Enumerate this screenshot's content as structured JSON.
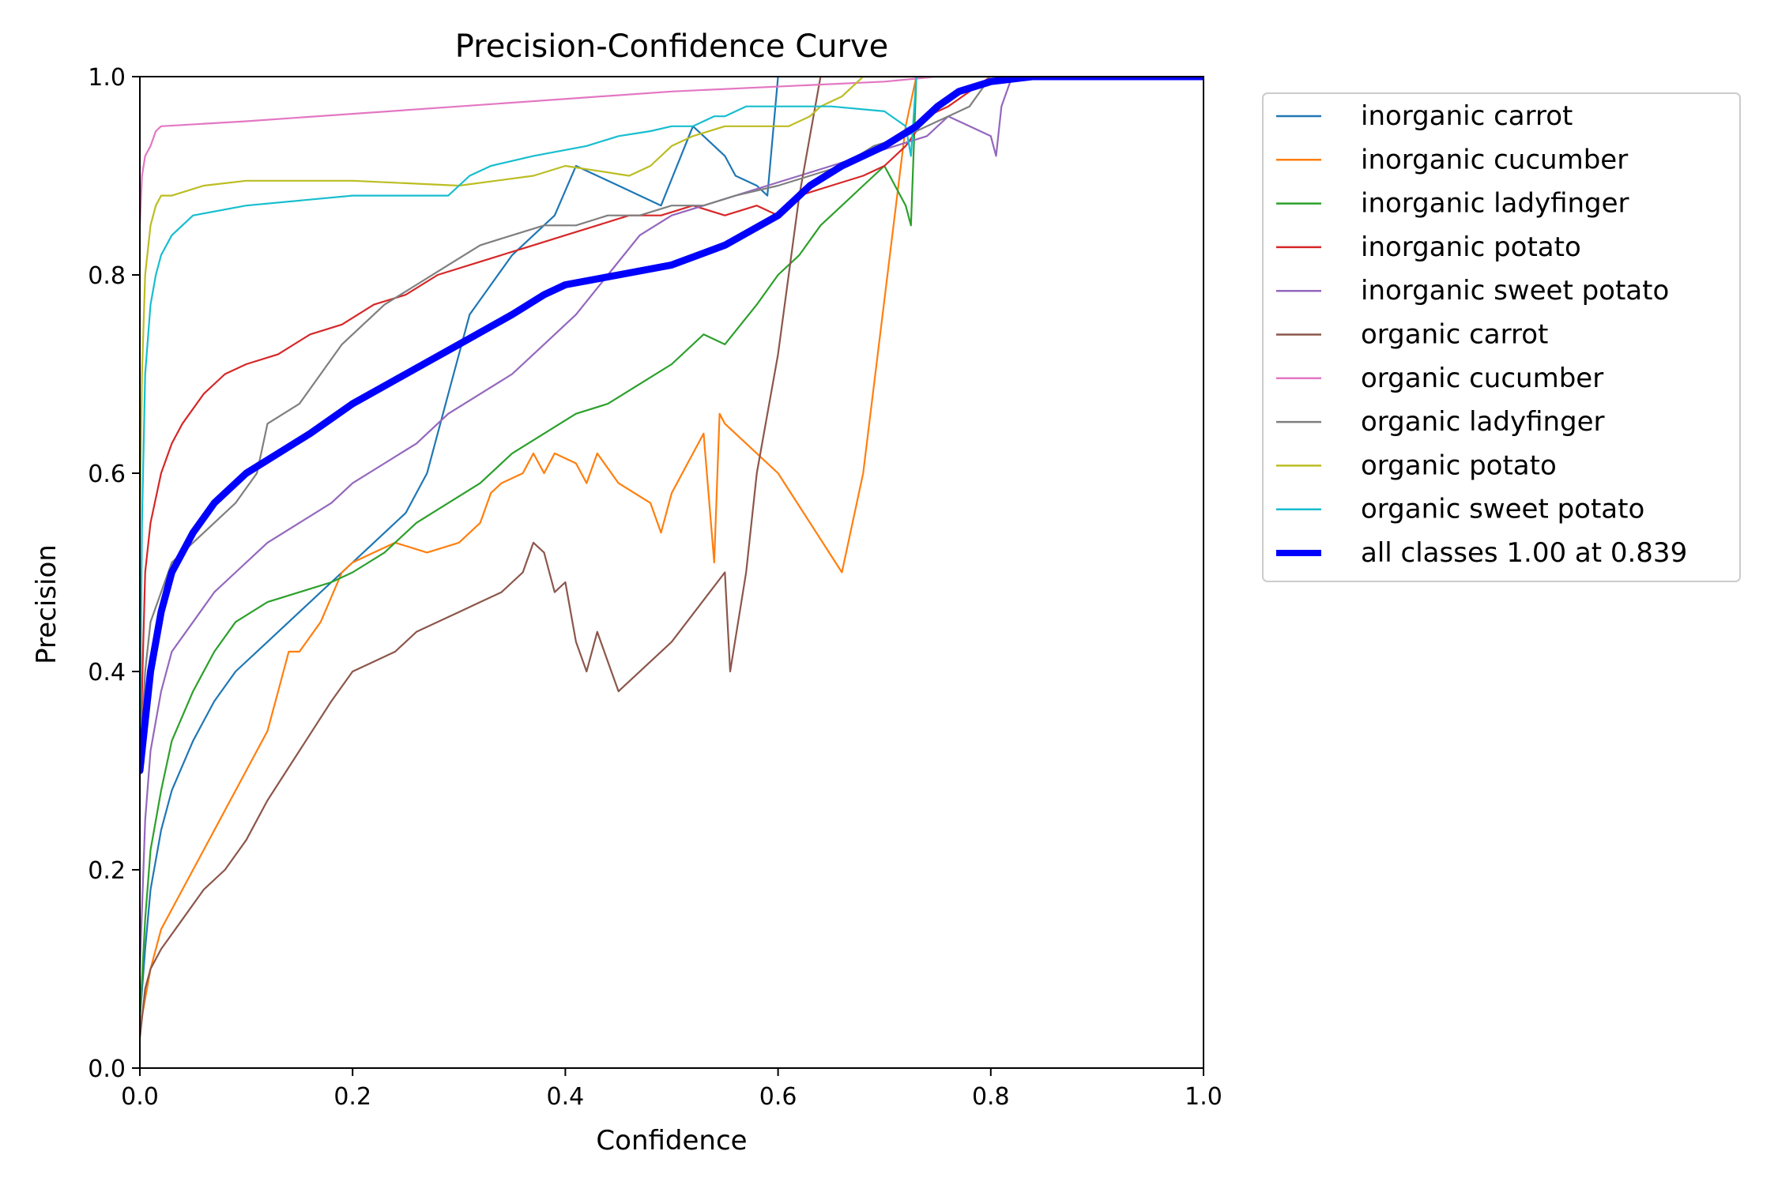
{
  "chart_data": {
    "type": "line",
    "title": "Precision-Confidence Curve",
    "xlabel": "Confidence",
    "ylabel": "Precision",
    "xlim": [
      0,
      1
    ],
    "ylim": [
      0,
      1
    ],
    "xticks": [
      "0.0",
      "0.2",
      "0.4",
      "0.6",
      "0.8",
      "1.0"
    ],
    "yticks": [
      "0.0",
      "0.2",
      "0.4",
      "0.6",
      "0.8",
      "1.0"
    ],
    "grid": false,
    "legend_position": "outside-right",
    "series": [
      {
        "name": "inorganic carrot",
        "color": "#1f77b4",
        "x": [
          0.0,
          0.005,
          0.01,
          0.02,
          0.03,
          0.05,
          0.07,
          0.09,
          0.12,
          0.15,
          0.18,
          0.2,
          0.22,
          0.25,
          0.27,
          0.29,
          0.31,
          0.33,
          0.35,
          0.37,
          0.39,
          0.41,
          0.43,
          0.45,
          0.47,
          0.49,
          0.52,
          0.54,
          0.55,
          0.56,
          0.58,
          0.59,
          0.6,
          0.61,
          0.63,
          0.7,
          0.8,
          1.0
        ],
        "y": [
          0.05,
          0.12,
          0.18,
          0.24,
          0.28,
          0.33,
          0.37,
          0.4,
          0.43,
          0.46,
          0.49,
          0.51,
          0.53,
          0.56,
          0.6,
          0.68,
          0.76,
          0.79,
          0.82,
          0.84,
          0.86,
          0.91,
          0.9,
          0.89,
          0.88,
          0.87,
          0.95,
          0.93,
          0.92,
          0.9,
          0.89,
          0.88,
          1.0,
          1.0,
          1.0,
          1.0,
          1.0,
          1.0
        ]
      },
      {
        "name": "inorganic cucumber",
        "color": "#ff7f0e",
        "x": [
          0.0,
          0.01,
          0.02,
          0.04,
          0.06,
          0.08,
          0.1,
          0.12,
          0.13,
          0.14,
          0.15,
          0.17,
          0.19,
          0.2,
          0.22,
          0.24,
          0.27,
          0.3,
          0.32,
          0.33,
          0.34,
          0.36,
          0.37,
          0.38,
          0.39,
          0.41,
          0.42,
          0.43,
          0.45,
          0.48,
          0.49,
          0.5,
          0.52,
          0.53,
          0.54,
          0.545,
          0.55,
          0.6,
          0.66,
          0.68,
          0.72,
          0.73,
          0.75,
          0.8,
          1.0
        ],
        "y": [
          0.04,
          0.1,
          0.14,
          0.18,
          0.22,
          0.26,
          0.3,
          0.34,
          0.38,
          0.42,
          0.42,
          0.45,
          0.5,
          0.51,
          0.52,
          0.53,
          0.52,
          0.53,
          0.55,
          0.58,
          0.59,
          0.6,
          0.62,
          0.6,
          0.62,
          0.61,
          0.59,
          0.62,
          0.59,
          0.57,
          0.54,
          0.58,
          0.62,
          0.64,
          0.51,
          0.66,
          0.65,
          0.6,
          0.5,
          0.6,
          0.95,
          1.0,
          1.0,
          1.0,
          1.0
        ]
      },
      {
        "name": "inorganic ladyfinger",
        "color": "#2ca02c",
        "x": [
          0.0,
          0.005,
          0.01,
          0.02,
          0.03,
          0.05,
          0.07,
          0.09,
          0.12,
          0.15,
          0.18,
          0.2,
          0.23,
          0.26,
          0.29,
          0.32,
          0.35,
          0.38,
          0.41,
          0.44,
          0.47,
          0.5,
          0.53,
          0.55,
          0.58,
          0.6,
          0.62,
          0.64,
          0.66,
          0.68,
          0.7,
          0.72,
          0.725,
          0.73,
          0.75,
          0.8,
          1.0
        ],
        "y": [
          0.05,
          0.15,
          0.22,
          0.28,
          0.33,
          0.38,
          0.42,
          0.45,
          0.47,
          0.48,
          0.49,
          0.5,
          0.52,
          0.55,
          0.57,
          0.59,
          0.62,
          0.64,
          0.66,
          0.67,
          0.69,
          0.71,
          0.74,
          0.73,
          0.77,
          0.8,
          0.82,
          0.85,
          0.87,
          0.89,
          0.91,
          0.87,
          0.85,
          1.0,
          1.0,
          1.0,
          1.0
        ]
      },
      {
        "name": "inorganic potato",
        "color": "#d62728",
        "x": [
          0.0,
          0.005,
          0.01,
          0.02,
          0.03,
          0.04,
          0.06,
          0.08,
          0.1,
          0.13,
          0.16,
          0.19,
          0.22,
          0.25,
          0.28,
          0.31,
          0.34,
          0.37,
          0.4,
          0.43,
          0.46,
          0.49,
          0.52,
          0.55,
          0.58,
          0.6,
          0.62,
          0.65,
          0.68,
          0.7,
          0.72,
          0.74,
          0.76,
          0.8,
          1.0
        ],
        "y": [
          0.3,
          0.5,
          0.55,
          0.6,
          0.63,
          0.65,
          0.68,
          0.7,
          0.71,
          0.72,
          0.74,
          0.75,
          0.77,
          0.78,
          0.8,
          0.81,
          0.82,
          0.83,
          0.84,
          0.85,
          0.86,
          0.86,
          0.87,
          0.86,
          0.87,
          0.86,
          0.88,
          0.89,
          0.9,
          0.91,
          0.93,
          0.96,
          0.97,
          1.0,
          1.0
        ]
      },
      {
        "name": "inorganic sweet potato",
        "color": "#9467bd",
        "x": [
          0.0,
          0.005,
          0.01,
          0.02,
          0.03,
          0.05,
          0.07,
          0.09,
          0.12,
          0.15,
          0.18,
          0.2,
          0.23,
          0.26,
          0.29,
          0.32,
          0.35,
          0.38,
          0.41,
          0.44,
          0.47,
          0.5,
          0.53,
          0.56,
          0.59,
          0.62,
          0.65,
          0.68,
          0.71,
          0.74,
          0.76,
          0.78,
          0.8,
          0.805,
          0.81,
          0.82,
          1.0
        ],
        "y": [
          0.1,
          0.25,
          0.32,
          0.38,
          0.42,
          0.45,
          0.48,
          0.5,
          0.53,
          0.55,
          0.57,
          0.59,
          0.61,
          0.63,
          0.66,
          0.68,
          0.7,
          0.73,
          0.76,
          0.8,
          0.84,
          0.86,
          0.87,
          0.88,
          0.89,
          0.9,
          0.91,
          0.92,
          0.93,
          0.94,
          0.96,
          0.95,
          0.94,
          0.92,
          0.97,
          1.0,
          1.0
        ]
      },
      {
        "name": "organic carrot",
        "color": "#8c564b",
        "x": [
          0.0,
          0.005,
          0.01,
          0.02,
          0.04,
          0.06,
          0.08,
          0.1,
          0.12,
          0.15,
          0.18,
          0.2,
          0.22,
          0.24,
          0.26,
          0.28,
          0.3,
          0.32,
          0.34,
          0.36,
          0.37,
          0.38,
          0.39,
          0.4,
          0.41,
          0.42,
          0.43,
          0.44,
          0.45,
          0.5,
          0.55,
          0.555,
          0.57,
          0.58,
          0.6,
          0.62,
          0.64,
          0.66,
          0.7,
          1.0
        ],
        "y": [
          0.03,
          0.08,
          0.1,
          0.12,
          0.15,
          0.18,
          0.2,
          0.23,
          0.27,
          0.32,
          0.37,
          0.4,
          0.41,
          0.42,
          0.44,
          0.45,
          0.46,
          0.47,
          0.48,
          0.5,
          0.53,
          0.52,
          0.48,
          0.49,
          0.43,
          0.4,
          0.44,
          0.41,
          0.38,
          0.43,
          0.5,
          0.4,
          0.5,
          0.6,
          0.72,
          0.88,
          1.0,
          1.0,
          1.0,
          1.0
        ]
      },
      {
        "name": "organic cucumber",
        "color": "#e377c2",
        "x": [
          0.0,
          0.002,
          0.005,
          0.01,
          0.015,
          0.02,
          0.1,
          0.3,
          0.5,
          0.7,
          0.75,
          0.8,
          1.0
        ],
        "y": [
          0.85,
          0.9,
          0.92,
          0.93,
          0.945,
          0.95,
          0.955,
          0.97,
          0.985,
          0.995,
          1.0,
          1.0,
          1.0
        ]
      },
      {
        "name": "organic ladyfinger",
        "color": "#7f7f7f",
        "x": [
          0.0,
          0.005,
          0.01,
          0.02,
          0.03,
          0.05,
          0.07,
          0.09,
          0.11,
          0.12,
          0.15,
          0.17,
          0.19,
          0.2,
          0.23,
          0.26,
          0.29,
          0.32,
          0.35,
          0.38,
          0.41,
          0.44,
          0.47,
          0.5,
          0.53,
          0.56,
          0.6,
          0.63,
          0.66,
          0.69,
          0.72,
          0.74,
          0.76,
          0.78,
          0.8,
          1.0
        ],
        "y": [
          0.3,
          0.4,
          0.45,
          0.48,
          0.51,
          0.53,
          0.55,
          0.57,
          0.6,
          0.65,
          0.67,
          0.7,
          0.73,
          0.74,
          0.77,
          0.79,
          0.81,
          0.83,
          0.84,
          0.85,
          0.85,
          0.86,
          0.86,
          0.87,
          0.87,
          0.88,
          0.89,
          0.9,
          0.91,
          0.93,
          0.94,
          0.95,
          0.96,
          0.97,
          1.0,
          1.0
        ]
      },
      {
        "name": "organic potato",
        "color": "#bcbd22",
        "x": [
          0.0,
          0.002,
          0.005,
          0.01,
          0.015,
          0.02,
          0.03,
          0.06,
          0.1,
          0.2,
          0.3,
          0.37,
          0.4,
          0.43,
          0.46,
          0.48,
          0.5,
          0.52,
          0.55,
          0.58,
          0.61,
          0.63,
          0.64,
          0.66,
          0.68,
          1.0
        ],
        "y": [
          0.55,
          0.7,
          0.8,
          0.85,
          0.87,
          0.88,
          0.88,
          0.89,
          0.895,
          0.895,
          0.89,
          0.9,
          0.91,
          0.905,
          0.9,
          0.91,
          0.93,
          0.94,
          0.95,
          0.95,
          0.95,
          0.96,
          0.97,
          0.98,
          1.0,
          1.0
        ]
      },
      {
        "name": "organic sweet potato",
        "color": "#17becf",
        "x": [
          0.0,
          0.002,
          0.005,
          0.01,
          0.015,
          0.02,
          0.03,
          0.05,
          0.1,
          0.2,
          0.29,
          0.31,
          0.33,
          0.37,
          0.42,
          0.45,
          0.48,
          0.5,
          0.52,
          0.54,
          0.55,
          0.57,
          0.6,
          0.65,
          0.7,
          0.72,
          0.725,
          0.73,
          0.8,
          1.0
        ],
        "y": [
          0.3,
          0.55,
          0.7,
          0.77,
          0.8,
          0.82,
          0.84,
          0.86,
          0.87,
          0.88,
          0.88,
          0.9,
          0.91,
          0.92,
          0.93,
          0.94,
          0.945,
          0.95,
          0.95,
          0.96,
          0.96,
          0.97,
          0.97,
          0.97,
          0.965,
          0.95,
          0.92,
          1.0,
          1.0,
          1.0
        ]
      },
      {
        "name": "all classes 1.00 at 0.839",
        "color": "#0000ff",
        "bold": true,
        "x": [
          0.0,
          0.005,
          0.01,
          0.02,
          0.03,
          0.05,
          0.07,
          0.1,
          0.13,
          0.16,
          0.2,
          0.25,
          0.3,
          0.35,
          0.38,
          0.4,
          0.45,
          0.5,
          0.55,
          0.6,
          0.63,
          0.66,
          0.7,
          0.73,
          0.75,
          0.77,
          0.8,
          0.839,
          1.0
        ],
        "y": [
          0.3,
          0.35,
          0.4,
          0.46,
          0.5,
          0.54,
          0.57,
          0.6,
          0.62,
          0.64,
          0.67,
          0.7,
          0.73,
          0.76,
          0.78,
          0.79,
          0.8,
          0.81,
          0.83,
          0.86,
          0.89,
          0.91,
          0.93,
          0.95,
          0.97,
          0.985,
          0.995,
          1.0,
          1.0
        ]
      }
    ]
  }
}
